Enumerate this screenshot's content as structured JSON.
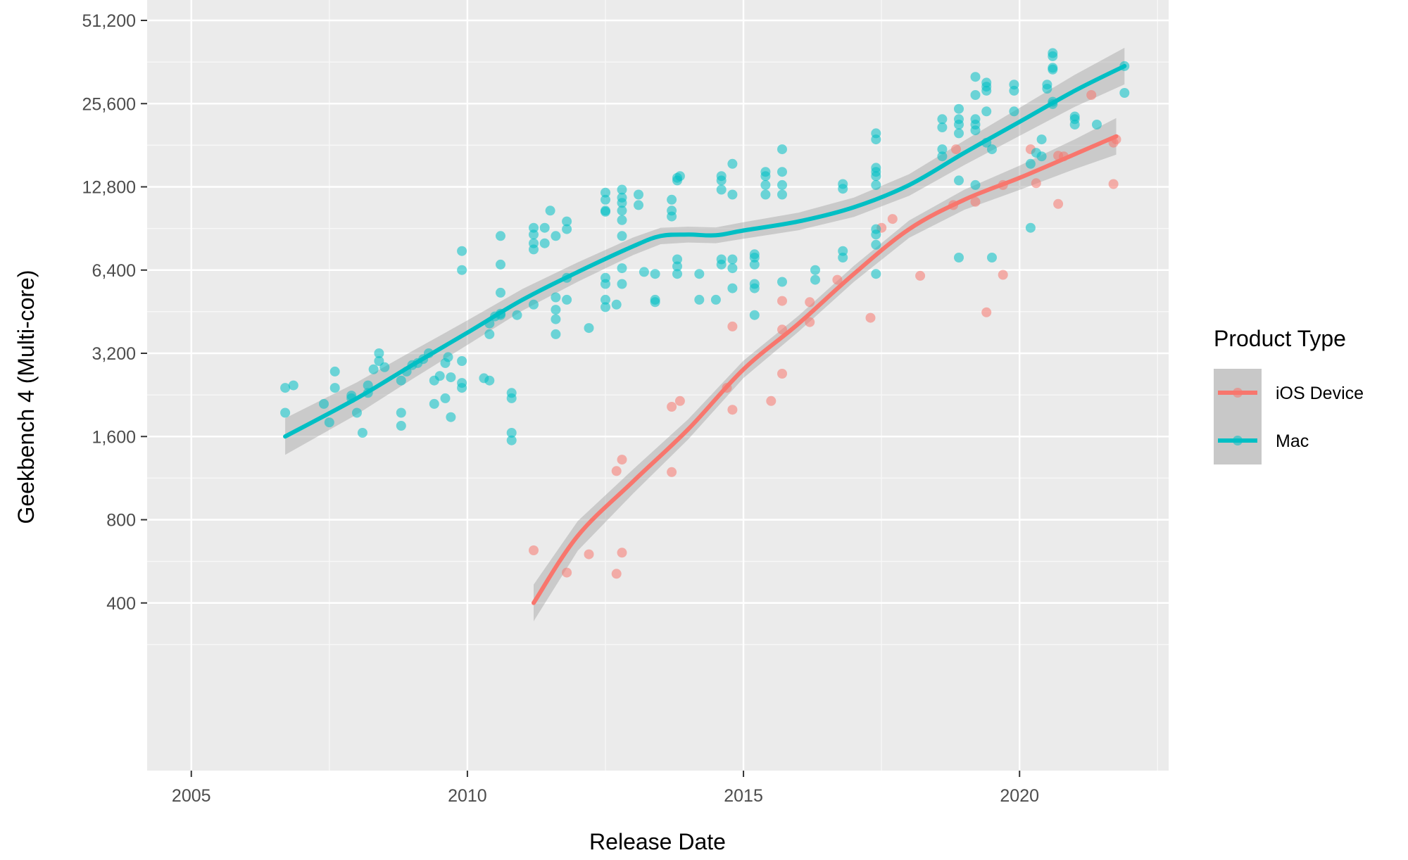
{
  "chart_data": {
    "type": "scatter",
    "title": "",
    "xlabel": "Release Date",
    "ylabel": "Geekbench 4 (Multi-core)",
    "x_scale": "date",
    "y_scale": "log2",
    "xlim": [
      2004.2,
      2022.7
    ],
    "ylim": [
      200,
      51200
    ],
    "x_ticks": [
      2005,
      2010,
      2015,
      2020
    ],
    "y_ticks": [
      400,
      800,
      1600,
      3200,
      6400,
      12800,
      25600,
      51200
    ],
    "y_tick_labels": [
      "400",
      "800",
      "1,600",
      "3,200",
      "6,400",
      "12,800",
      "25,600",
      "51,200"
    ],
    "grid": true,
    "background": "#ebebeb",
    "legend": {
      "title": "Product Type",
      "position": "right",
      "entries": [
        "iOS Device",
        "Mac"
      ]
    },
    "series": [
      {
        "name": "iOS Device",
        "color": "#f8766d",
        "points": [
          [
            2011.2,
            620
          ],
          [
            2011.8,
            515
          ],
          [
            2012.2,
            600
          ],
          [
            2012.7,
            510
          ],
          [
            2012.8,
            608
          ],
          [
            2012.7,
            1200
          ],
          [
            2012.8,
            1320
          ],
          [
            2013.7,
            1190
          ],
          [
            2013.7,
            2050
          ],
          [
            2013.85,
            2150
          ],
          [
            2014.7,
            2400
          ],
          [
            2014.8,
            2000
          ],
          [
            2014.8,
            4000
          ],
          [
            2015.5,
            2150
          ],
          [
            2015.7,
            2700
          ],
          [
            2015.7,
            3900
          ],
          [
            2015.7,
            4950
          ],
          [
            2016.2,
            4150
          ],
          [
            2016.2,
            4900
          ],
          [
            2016.7,
            5900
          ],
          [
            2017.3,
            4300
          ],
          [
            2017.5,
            9100
          ],
          [
            2017.7,
            9800
          ],
          [
            2018.2,
            6100
          ],
          [
            2018.8,
            11000
          ],
          [
            2018.85,
            17500
          ],
          [
            2019.2,
            11300
          ],
          [
            2019.4,
            4500
          ],
          [
            2019.7,
            13000
          ],
          [
            2019.7,
            6150
          ],
          [
            2020.2,
            17500
          ],
          [
            2020.3,
            13200
          ],
          [
            2020.7,
            11100
          ],
          [
            2020.7,
            16600
          ],
          [
            2020.8,
            16500
          ],
          [
            2021.3,
            27500
          ],
          [
            2021.7,
            13100
          ],
          [
            2021.7,
            18500
          ],
          [
            2021.75,
            19000
          ]
        ],
        "trend": [
          [
            2011.2,
            400
          ],
          [
            2012.0,
            700
          ],
          [
            2013.0,
            1100
          ],
          [
            2014.0,
            1700
          ],
          [
            2015.0,
            2800
          ],
          [
            2016.0,
            4100
          ],
          [
            2017.0,
            6200
          ],
          [
            2018.0,
            9000
          ],
          [
            2019.0,
            11500
          ],
          [
            2020.0,
            13800
          ],
          [
            2021.0,
            16800
          ],
          [
            2021.75,
            19500
          ]
        ]
      },
      {
        "name": "Mac",
        "color": "#00bfc4",
        "points": [
          [
            2006.7,
            2400
          ],
          [
            2006.7,
            1950
          ],
          [
            2006.85,
            2450
          ],
          [
            2007.4,
            2100
          ],
          [
            2007.5,
            1800
          ],
          [
            2007.6,
            2400
          ],
          [
            2007.6,
            2750
          ],
          [
            2007.9,
            2250
          ],
          [
            2007.9,
            2200
          ],
          [
            2008.0,
            1950
          ],
          [
            2008.1,
            1650
          ],
          [
            2008.2,
            2300
          ],
          [
            2008.2,
            2450
          ],
          [
            2008.3,
            2800
          ],
          [
            2008.4,
            3000
          ],
          [
            2008.4,
            3200
          ],
          [
            2008.5,
            2850
          ],
          [
            2008.8,
            1750
          ],
          [
            2008.8,
            1950
          ],
          [
            2008.8,
            2550
          ],
          [
            2008.9,
            2750
          ],
          [
            2009.0,
            2900
          ],
          [
            2009.1,
            2950
          ],
          [
            2009.2,
            3050
          ],
          [
            2009.3,
            3200
          ],
          [
            2009.4,
            2100
          ],
          [
            2009.4,
            2550
          ],
          [
            2009.5,
            2650
          ],
          [
            2009.6,
            2200
          ],
          [
            2009.6,
            2950
          ],
          [
            2009.65,
            3100
          ],
          [
            2009.7,
            1880
          ],
          [
            2009.7,
            2620
          ],
          [
            2009.9,
            2400
          ],
          [
            2009.9,
            2500
          ],
          [
            2009.9,
            3000
          ],
          [
            2009.9,
            7500
          ],
          [
            2009.9,
            6400
          ],
          [
            2010.3,
            2600
          ],
          [
            2010.4,
            2550
          ],
          [
            2010.4,
            3750
          ],
          [
            2010.4,
            4100
          ],
          [
            2010.5,
            4350
          ],
          [
            2010.6,
            4400
          ],
          [
            2010.6,
            4450
          ],
          [
            2010.6,
            5300
          ],
          [
            2010.6,
            6700
          ],
          [
            2010.6,
            8500
          ],
          [
            2010.8,
            2200
          ],
          [
            2010.8,
            2300
          ],
          [
            2010.8,
            1650
          ],
          [
            2010.8,
            1550
          ],
          [
            2010.9,
            4400
          ],
          [
            2011.2,
            4800
          ],
          [
            2011.2,
            7600
          ],
          [
            2011.2,
            8000
          ],
          [
            2011.2,
            8600
          ],
          [
            2011.2,
            9100
          ],
          [
            2011.4,
            8000
          ],
          [
            2011.4,
            9100
          ],
          [
            2011.5,
            10500
          ],
          [
            2011.6,
            8500
          ],
          [
            2011.6,
            5100
          ],
          [
            2011.6,
            4600
          ],
          [
            2011.6,
            4250
          ],
          [
            2011.6,
            3750
          ],
          [
            2011.8,
            6000
          ],
          [
            2011.8,
            5000
          ],
          [
            2011.8,
            9000
          ],
          [
            2011.8,
            9600
          ],
          [
            2012.2,
            3950
          ],
          [
            2012.5,
            12200
          ],
          [
            2012.5,
            11500
          ],
          [
            2012.5,
            10500
          ],
          [
            2012.5,
            10400
          ],
          [
            2012.5,
            6000
          ],
          [
            2012.5,
            5700
          ],
          [
            2012.5,
            5000
          ],
          [
            2012.5,
            4700
          ],
          [
            2012.8,
            12500
          ],
          [
            2012.8,
            11700
          ],
          [
            2012.8,
            11200
          ],
          [
            2012.8,
            10500
          ],
          [
            2012.8,
            9700
          ],
          [
            2012.8,
            8500
          ],
          [
            2012.8,
            6500
          ],
          [
            2012.8,
            5700
          ],
          [
            2012.7,
            4800
          ],
          [
            2013.1,
            11000
          ],
          [
            2013.1,
            12000
          ],
          [
            2013.2,
            6300
          ],
          [
            2013.4,
            6200
          ],
          [
            2013.4,
            5000
          ],
          [
            2013.4,
            4900
          ],
          [
            2013.7,
            10000
          ],
          [
            2013.7,
            10500
          ],
          [
            2013.7,
            11500
          ],
          [
            2013.8,
            13500
          ],
          [
            2013.8,
            13800
          ],
          [
            2013.85,
            14000
          ],
          [
            2013.8,
            6200
          ],
          [
            2013.8,
            6600
          ],
          [
            2013.8,
            7000
          ],
          [
            2014.2,
            6200
          ],
          [
            2014.2,
            5000
          ],
          [
            2014.5,
            5000
          ],
          [
            2014.6,
            12500
          ],
          [
            2014.6,
            13500
          ],
          [
            2014.6,
            14000
          ],
          [
            2014.6,
            6700
          ],
          [
            2014.6,
            7000
          ],
          [
            2014.8,
            6500
          ],
          [
            2014.8,
            7000
          ],
          [
            2014.8,
            5500
          ],
          [
            2014.8,
            12000
          ],
          [
            2014.8,
            15500
          ],
          [
            2015.2,
            7100
          ],
          [
            2015.2,
            7300
          ],
          [
            2015.2,
            6700
          ],
          [
            2015.2,
            5700
          ],
          [
            2015.2,
            5500
          ],
          [
            2015.2,
            4400
          ],
          [
            2015.4,
            13000
          ],
          [
            2015.4,
            14000
          ],
          [
            2015.4,
            14500
          ],
          [
            2015.4,
            12000
          ],
          [
            2015.7,
            13000
          ],
          [
            2015.7,
            12000
          ],
          [
            2015.7,
            14500
          ],
          [
            2015.7,
            17500
          ],
          [
            2015.7,
            5800
          ],
          [
            2016.3,
            5900
          ],
          [
            2016.3,
            6400
          ],
          [
            2016.8,
            7100
          ],
          [
            2016.8,
            7500
          ],
          [
            2016.8,
            12600
          ],
          [
            2016.8,
            13100
          ],
          [
            2017.4,
            8600
          ],
          [
            2017.4,
            9000
          ],
          [
            2017.4,
            6200
          ],
          [
            2017.4,
            7900
          ],
          [
            2017.4,
            13000
          ],
          [
            2017.4,
            14000
          ],
          [
            2017.4,
            14500
          ],
          [
            2017.4,
            15000
          ],
          [
            2017.4,
            19000
          ],
          [
            2017.4,
            20000
          ],
          [
            2018.6,
            16500
          ],
          [
            2018.6,
            17500
          ],
          [
            2018.6,
            21000
          ],
          [
            2018.6,
            22500
          ],
          [
            2018.9,
            20000
          ],
          [
            2018.9,
            21500
          ],
          [
            2018.9,
            22500
          ],
          [
            2018.9,
            24500
          ],
          [
            2018.9,
            13500
          ],
          [
            2018.9,
            7100
          ],
          [
            2019.2,
            20500
          ],
          [
            2019.2,
            21500
          ],
          [
            2019.2,
            22500
          ],
          [
            2019.2,
            27500
          ],
          [
            2019.2,
            32000
          ],
          [
            2019.2,
            13000
          ],
          [
            2019.4,
            24000
          ],
          [
            2019.4,
            28500
          ],
          [
            2019.4,
            29500
          ],
          [
            2019.4,
            30500
          ],
          [
            2019.4,
            18500
          ],
          [
            2019.5,
            17500
          ],
          [
            2019.5,
            7100
          ],
          [
            2019.9,
            24000
          ],
          [
            2019.9,
            28500
          ],
          [
            2019.9,
            30000
          ],
          [
            2020.2,
            9100
          ],
          [
            2020.2,
            15500
          ],
          [
            2020.3,
            17000
          ],
          [
            2020.4,
            16500
          ],
          [
            2020.4,
            19000
          ],
          [
            2020.5,
            29000
          ],
          [
            2020.5,
            30000
          ],
          [
            2020.6,
            25500
          ],
          [
            2020.6,
            38000
          ],
          [
            2020.6,
            39000
          ],
          [
            2020.6,
            34000
          ],
          [
            2020.6,
            34500
          ],
          [
            2020.6,
            26000
          ],
          [
            2021.0,
            23000
          ],
          [
            2021.0,
            22500
          ],
          [
            2021.0,
            21500
          ],
          [
            2021.4,
            21500
          ],
          [
            2021.9,
            35000
          ],
          [
            2021.9,
            28000
          ]
        ],
        "trend": [
          [
            2006.7,
            1600
          ],
          [
            2008.0,
            2200
          ],
          [
            2009.0,
            2900
          ],
          [
            2010.0,
            3800
          ],
          [
            2011.0,
            5000
          ],
          [
            2012.0,
            6300
          ],
          [
            2013.0,
            7800
          ],
          [
            2013.5,
            8500
          ],
          [
            2014.0,
            8600
          ],
          [
            2014.5,
            8550
          ],
          [
            2015.0,
            8900
          ],
          [
            2016.0,
            9600
          ],
          [
            2017.0,
            10800
          ],
          [
            2018.0,
            13000
          ],
          [
            2019.0,
            17000
          ],
          [
            2020.0,
            22000
          ],
          [
            2021.0,
            28500
          ],
          [
            2021.9,
            35000
          ]
        ]
      }
    ]
  }
}
